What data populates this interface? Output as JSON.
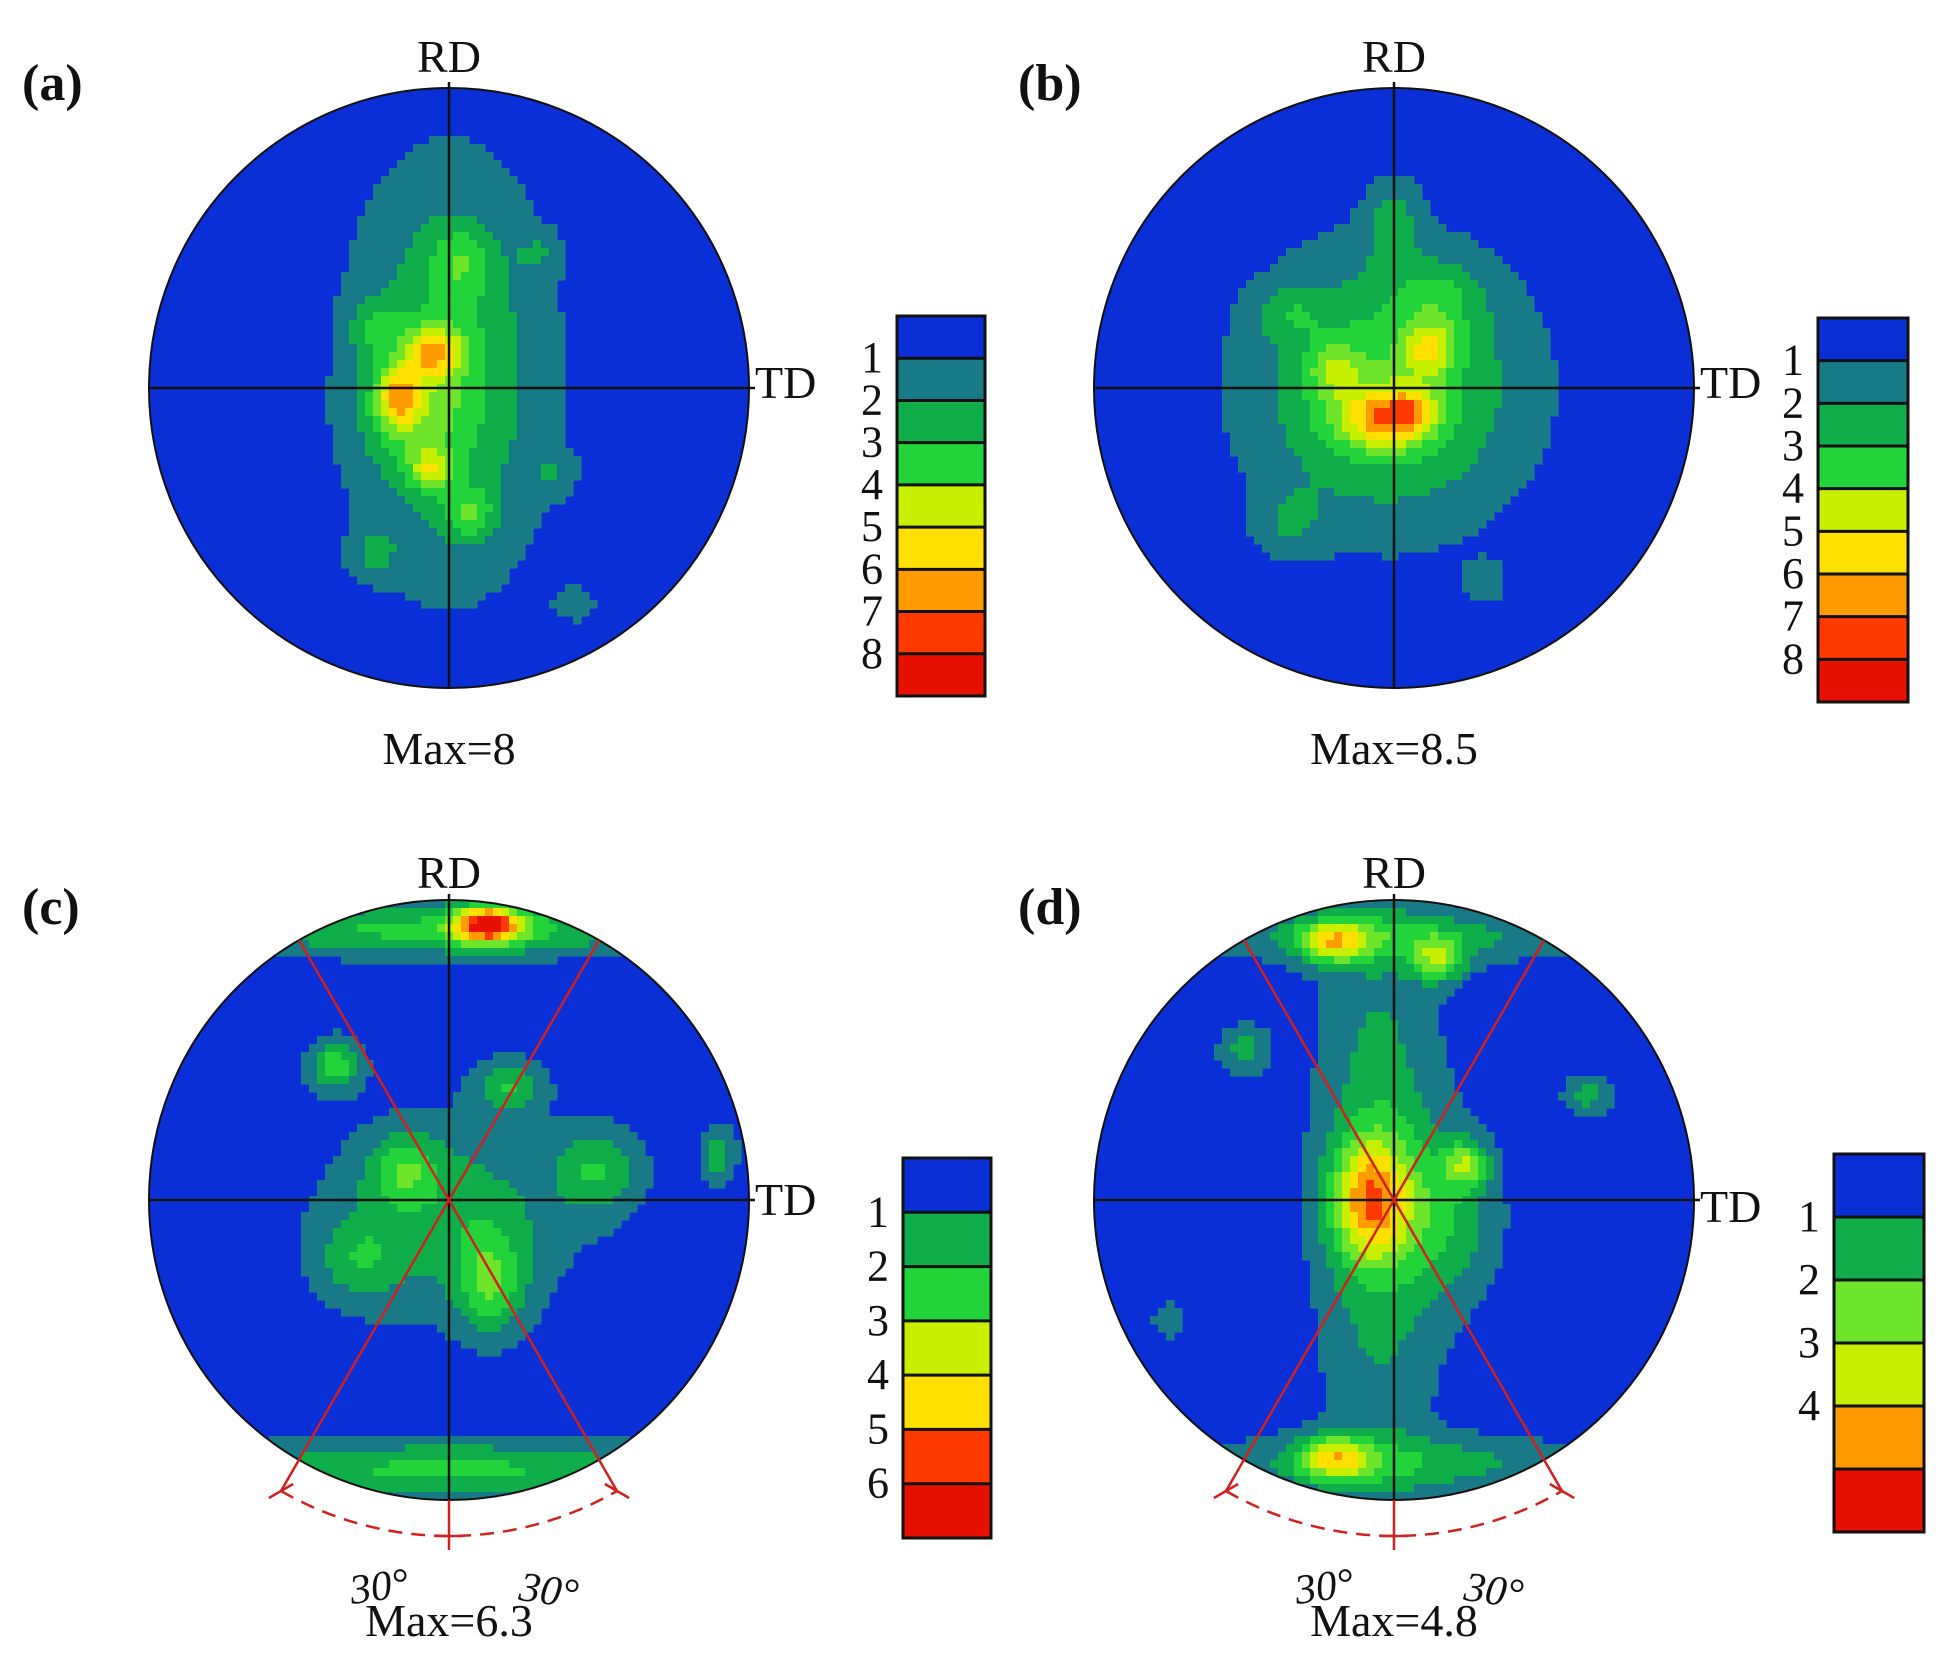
{
  "colors": {
    "c0": "#0a2fd6",
    "c1": "#177a86",
    "c2": "#0fae4a",
    "c3": "#22d43a",
    "c4": "#6ee42a",
    "c5": "#c6f000",
    "c6": "#ffe000",
    "c7": "#ff9a00",
    "c8": "#ff3a00",
    "c9": "#e81000",
    "guide": "#d02020",
    "axis": "#111111"
  },
  "chart_data": [
    {
      "type": "heatmap",
      "panel_label": "(a)",
      "axis_labels": {
        "top": "RD",
        "right": "TD"
      },
      "max_label": "Max=8",
      "max_value": 8,
      "colorbar": {
        "ticks": [
          "1",
          "2",
          "3",
          "4",
          "5",
          "6",
          "7",
          "8"
        ],
        "levels": 9
      },
      "guides": null,
      "blobs": [
        {
          "u": 0.0,
          "v": -0.05,
          "sx": 0.22,
          "sy": 0.45,
          "h": 2.6
        },
        {
          "u": -0.12,
          "v": 0.08,
          "sx": 0.12,
          "sy": 0.12,
          "h": 1.6
        },
        {
          "u": -0.05,
          "v": -0.12,
          "sx": 0.07,
          "sy": 0.06,
          "h": 3.8
        },
        {
          "u": -0.17,
          "v": 0.03,
          "sx": 0.05,
          "sy": 0.07,
          "h": 3.6
        },
        {
          "u": -0.06,
          "v": 0.27,
          "sx": 0.05,
          "sy": 0.05,
          "h": 3.0
        },
        {
          "u": 0.07,
          "v": 0.42,
          "sx": 0.06,
          "sy": 0.06,
          "h": 2.0
        },
        {
          "u": 0.04,
          "v": -0.42,
          "sx": 0.07,
          "sy": 0.08,
          "h": 1.6
        },
        {
          "u": -0.25,
          "v": -0.2,
          "sx": 0.06,
          "sy": 0.06,
          "h": 1.4
        },
        {
          "u": -0.25,
          "v": 0.55,
          "sx": 0.06,
          "sy": 0.06,
          "h": 1.3
        },
        {
          "u": 0.35,
          "v": 0.28,
          "sx": 0.05,
          "sy": 0.05,
          "h": 1.1
        },
        {
          "u": 0.42,
          "v": 0.72,
          "sx": 0.05,
          "sy": 0.04,
          "h": 1.2
        },
        {
          "u": 0.3,
          "v": -0.45,
          "sx": 0.05,
          "sy": 0.05,
          "h": 1.0
        }
      ]
    },
    {
      "type": "heatmap",
      "panel_label": "(b)",
      "axis_labels": {
        "top": "RD",
        "right": "TD"
      },
      "max_label": "Max=8.5",
      "max_value": 8.5,
      "colorbar": {
        "ticks": [
          "1",
          "2",
          "3",
          "4",
          "5",
          "6",
          "7",
          "8"
        ],
        "levels": 9
      },
      "guides": null,
      "blobs": [
        {
          "u": -0.02,
          "v": 0.0,
          "sx": 0.3,
          "sy": 0.3,
          "h": 3.2
        },
        {
          "u": -0.05,
          "v": 0.1,
          "sx": 0.1,
          "sy": 0.07,
          "h": 3.6
        },
        {
          "u": 0.06,
          "v": 0.08,
          "sx": 0.06,
          "sy": 0.06,
          "h": 2.4
        },
        {
          "u": 0.12,
          "v": -0.13,
          "sx": 0.06,
          "sy": 0.06,
          "h": 3.0
        },
        {
          "u": -0.2,
          "v": -0.06,
          "sx": 0.06,
          "sy": 0.06,
          "h": 2.0
        },
        {
          "u": 0.0,
          "v": -0.55,
          "sx": 0.06,
          "sy": 0.1,
          "h": 1.6
        },
        {
          "u": 0.15,
          "v": -0.3,
          "sx": 0.1,
          "sy": 0.08,
          "h": 1.4
        },
        {
          "u": -0.35,
          "v": 0.45,
          "sx": 0.08,
          "sy": 0.08,
          "h": 1.2
        },
        {
          "u": 0.3,
          "v": 0.65,
          "sx": 0.05,
          "sy": 0.05,
          "h": 1.2
        },
        {
          "u": -0.35,
          "v": -0.25,
          "sx": 0.08,
          "sy": 0.06,
          "h": 1.2
        }
      ]
    },
    {
      "type": "heatmap",
      "panel_label": "(c)",
      "axis_labels": {
        "top": "RD",
        "right": "TD"
      },
      "max_label": "Max=6.3",
      "max_value": 6.3,
      "colorbar": {
        "ticks": [
          "1",
          "2",
          "3",
          "4",
          "5",
          "6"
        ],
        "levels": 7
      },
      "guides": {
        "half_angle_deg": 30,
        "angle_labels": [
          "30°",
          "30°"
        ]
      },
      "blobs": [
        {
          "u": 0.13,
          "v": -0.92,
          "sx": 0.08,
          "sy": 0.045,
          "h": 6.6
        },
        {
          "u": 0.0,
          "v": -0.9,
          "sx": 0.6,
          "sy": 0.06,
          "h": 2.7
        },
        {
          "u": 0.0,
          "v": 0.9,
          "sx": 0.6,
          "sy": 0.07,
          "h": 2.6
        },
        {
          "u": 0.0,
          "v": 0.05,
          "sx": 0.28,
          "sy": 0.22,
          "h": 2.0
        },
        {
          "u": 0.14,
          "v": 0.28,
          "sx": 0.08,
          "sy": 0.12,
          "h": 2.6
        },
        {
          "u": -0.38,
          "v": -0.45,
          "sx": 0.06,
          "sy": 0.06,
          "h": 3.0
        },
        {
          "u": 0.2,
          "v": -0.38,
          "sx": 0.08,
          "sy": 0.06,
          "h": 2.2
        },
        {
          "u": 0.5,
          "v": -0.1,
          "sx": 0.1,
          "sy": 0.1,
          "h": 2.2
        },
        {
          "u": -0.15,
          "v": -0.1,
          "sx": 0.08,
          "sy": 0.08,
          "h": 2.2
        },
        {
          "u": 0.9,
          "v": -0.15,
          "sx": 0.04,
          "sy": 0.07,
          "h": 2.0
        },
        {
          "u": -0.3,
          "v": 0.2,
          "sx": 0.1,
          "sy": 0.1,
          "h": 1.6
        }
      ]
    },
    {
      "type": "heatmap",
      "panel_label": "(d)",
      "axis_labels": {
        "top": "RD",
        "right": "TD"
      },
      "max_label": "Max=4.8",
      "max_value": 4.8,
      "colorbar": {
        "ticks": [
          "1",
          "2",
          "3",
          "4"
        ],
        "levels": 6
      },
      "guides": {
        "half_angle_deg": 30,
        "angle_labels": [
          "30°",
          "30°"
        ]
      },
      "blobs": [
        {
          "u": -0.05,
          "v": -0.05,
          "sx": 0.14,
          "sy": 0.65,
          "h": 2.2
        },
        {
          "u": -0.08,
          "v": 0.0,
          "sx": 0.09,
          "sy": 0.14,
          "h": 5.0
        },
        {
          "u": -0.2,
          "v": -0.86,
          "sx": 0.08,
          "sy": 0.05,
          "h": 4.0
        },
        {
          "u": 0.15,
          "v": -0.8,
          "sx": 0.06,
          "sy": 0.05,
          "h": 3.6
        },
        {
          "u": -0.2,
          "v": 0.86,
          "sx": 0.08,
          "sy": 0.05,
          "h": 4.0
        },
        {
          "u": 0.0,
          "v": -0.88,
          "sx": 0.45,
          "sy": 0.06,
          "h": 2.0
        },
        {
          "u": 0.0,
          "v": 0.88,
          "sx": 0.45,
          "sy": 0.07,
          "h": 2.0
        },
        {
          "u": 0.18,
          "v": 0.05,
          "sx": 0.12,
          "sy": 0.2,
          "h": 2.0
        },
        {
          "u": 0.24,
          "v": -0.12,
          "sx": 0.05,
          "sy": 0.05,
          "h": 3.0
        },
        {
          "u": -0.5,
          "v": -0.5,
          "sx": 0.06,
          "sy": 0.06,
          "h": 1.8
        },
        {
          "u": 0.65,
          "v": -0.35,
          "sx": 0.06,
          "sy": 0.05,
          "h": 1.8
        },
        {
          "u": -0.75,
          "v": 0.4,
          "sx": 0.04,
          "sy": 0.04,
          "h": 1.4
        }
      ]
    }
  ]
}
